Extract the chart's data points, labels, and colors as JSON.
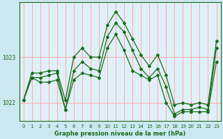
{
  "title": "Graphe pression niveau de la mer (hPa)",
  "bg_color": "#cce8f0",
  "plot_bg_color": "#dff0f8",
  "line_color": "#1a6b1a",
  "grid_color": "#ffaaaa",
  "x_ticks": [
    0,
    1,
    2,
    3,
    4,
    5,
    6,
    7,
    8,
    9,
    10,
    11,
    12,
    13,
    14,
    15,
    16,
    17,
    18,
    19,
    20,
    21,
    22,
    23
  ],
  "ylim": [
    1021.6,
    1024.2
  ],
  "y_ticks": [
    1022,
    1023
  ],
  "main_series": [
    1022.05,
    1022.55,
    1022.55,
    1022.6,
    1022.65,
    1021.85,
    1022.7,
    1022.9,
    1022.75,
    1022.7,
    1023.45,
    1023.75,
    1023.55,
    1023.15,
    1022.75,
    1022.55,
    1022.75,
    1022.35,
    1021.75,
    1021.85,
    1021.85,
    1021.9,
    1021.85,
    1023.2
  ],
  "min_series": [
    1022.05,
    1022.55,
    1022.45,
    1022.45,
    1022.5,
    1021.85,
    1022.5,
    1022.65,
    1022.6,
    1022.55,
    1023.2,
    1023.5,
    1023.15,
    1022.7,
    1022.6,
    1022.5,
    1022.6,
    1022.0,
    1021.7,
    1021.8,
    1021.8,
    1021.8,
    1021.8,
    1022.9
  ],
  "max_series": [
    1022.05,
    1022.65,
    1022.65,
    1022.7,
    1022.7,
    1022.05,
    1023.0,
    1023.2,
    1023.0,
    1023.0,
    1023.7,
    1024.0,
    1023.75,
    1023.4,
    1023.05,
    1022.8,
    1023.05,
    1022.6,
    1021.95,
    1022.0,
    1021.95,
    1022.0,
    1021.95,
    1023.35
  ]
}
